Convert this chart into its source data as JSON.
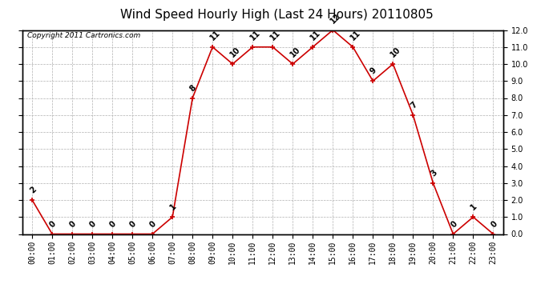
{
  "title": "Wind Speed Hourly High (Last 24 Hours) 20110805",
  "copyright_text": "Copyright 2011 Cartronics.com",
  "hours": [
    "00:00",
    "01:00",
    "02:00",
    "03:00",
    "04:00",
    "05:00",
    "06:00",
    "07:00",
    "08:00",
    "09:00",
    "10:00",
    "11:00",
    "12:00",
    "13:00",
    "14:00",
    "15:00",
    "16:00",
    "17:00",
    "18:00",
    "19:00",
    "20:00",
    "21:00",
    "22:00",
    "23:00"
  ],
  "values": [
    2,
    0,
    0,
    0,
    0,
    0,
    0,
    1,
    8,
    11,
    10,
    11,
    11,
    10,
    11,
    12,
    11,
    9,
    10,
    7,
    3,
    0,
    1,
    0
  ],
  "line_color": "#cc0000",
  "marker_color": "#cc0000",
  "bg_color": "#ffffff",
  "plot_bg_color": "#ffffff",
  "grid_color": "#b0b0b0",
  "ylim": [
    0.0,
    12.0
  ],
  "yticks": [
    0.0,
    1.0,
    2.0,
    3.0,
    4.0,
    5.0,
    6.0,
    7.0,
    8.0,
    9.0,
    10.0,
    11.0,
    12.0
  ],
  "title_fontsize": 11,
  "annotation_fontsize": 7,
  "tick_fontsize": 7,
  "copyright_fontsize": 6.5
}
